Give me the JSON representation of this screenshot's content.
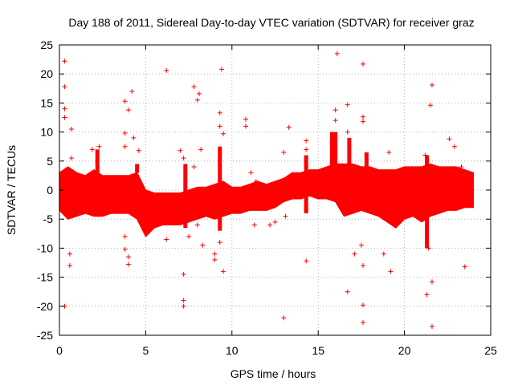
{
  "chart_data": {
    "type": "scatter",
    "title": "Day 188 of 2011, Sidereal Day-to-day VTEC variation (SDTVAR) for receiver graz",
    "xlabel": "GPS time / hours",
    "ylabel": "SDTVAR / TECUs",
    "xlim": [
      0,
      25
    ],
    "ylim": [
      -25,
      25
    ],
    "xticks": [
      0,
      5,
      10,
      15,
      20,
      25
    ],
    "yticks": [
      -25,
      -20,
      -15,
      -10,
      -5,
      0,
      5,
      10,
      15,
      20,
      25
    ],
    "xtick_labels": [
      "0",
      "5",
      "10",
      "15",
      "20",
      "25"
    ],
    "ytick_labels": [
      "-25",
      "-20",
      "-15",
      "-10",
      "-5",
      "0",
      "5",
      "10",
      "15",
      "20",
      "25"
    ],
    "grid": true,
    "marker": "+",
    "color": "#ff0000",
    "band_envelope": {
      "description": "dense scatter band: per-hour approximate upper / lower extent of the bulk of points",
      "x": [
        0.0,
        0.5,
        1.0,
        1.5,
        2.0,
        2.5,
        3.0,
        3.5,
        4.0,
        4.5,
        5.0,
        5.5,
        6.0,
        6.5,
        7.0,
        7.5,
        8.0,
        8.5,
        9.0,
        9.5,
        10.0,
        10.5,
        11.0,
        11.5,
        12.0,
        12.5,
        13.0,
        13.5,
        14.0,
        14.5,
        15.0,
        15.5,
        16.0,
        16.5,
        17.0,
        17.5,
        18.0,
        18.5,
        19.0,
        19.5,
        20.0,
        20.5,
        21.0,
        21.5,
        22.0,
        22.5,
        23.0,
        23.5,
        24.0
      ],
      "upper": [
        3.0,
        4.0,
        3.0,
        2.5,
        3.5,
        2.5,
        2.5,
        2.5,
        2.5,
        3.0,
        0.0,
        -0.5,
        -0.5,
        -0.5,
        -0.5,
        0.0,
        0.5,
        0.5,
        1.0,
        1.5,
        0.5,
        0.5,
        1.0,
        1.5,
        1.0,
        1.5,
        2.0,
        3.0,
        3.0,
        3.5,
        3.5,
        4.0,
        4.5,
        4.5,
        4.5,
        4.0,
        4.0,
        3.5,
        3.5,
        3.5,
        4.0,
        4.0,
        4.0,
        4.5,
        4.0,
        4.0,
        4.0,
        3.5,
        3.0
      ],
      "lower": [
        -3.5,
        -5.0,
        -4.5,
        -4.0,
        -4.5,
        -4.5,
        -4.0,
        -4.0,
        -4.0,
        -5.0,
        -8.0,
        -6.5,
        -6.0,
        -6.0,
        -6.0,
        -5.5,
        -5.0,
        -4.5,
        -5.0,
        -4.5,
        -4.0,
        -4.0,
        -3.5,
        -3.5,
        -3.5,
        -3.0,
        -2.0,
        -1.5,
        -1.5,
        -1.0,
        -1.5,
        -1.5,
        -2.0,
        -4.5,
        -4.0,
        -3.5,
        -4.0,
        -4.5,
        -5.5,
        -6.5,
        -5.0,
        -4.5,
        -5.5,
        -4.5,
        -4.0,
        -3.5,
        -3.5,
        -3.0,
        -3.0
      ]
    },
    "band_spikes": [
      {
        "x": 15.8,
        "y_top": 10.0,
        "y_bottom": 3.0
      },
      {
        "x": 16.0,
        "y_top": 10.0,
        "y_bottom": 3.0
      },
      {
        "x": 16.8,
        "y_top": 9.0,
        "y_bottom": 4.0
      },
      {
        "x": 17.8,
        "y_top": 6.5,
        "y_bottom": 4.0
      },
      {
        "x": 2.2,
        "y_top": 7.0,
        "y_bottom": 3.0
      },
      {
        "x": 4.5,
        "y_top": 4.5,
        "y_bottom": 3.0
      },
      {
        "x": 7.3,
        "y_top": 4.5,
        "y_bottom": -6.5
      },
      {
        "x": 9.3,
        "y_top": 7.5,
        "y_bottom": -7.0
      },
      {
        "x": 14.3,
        "y_top": 6.0,
        "y_bottom": -4.0
      },
      {
        "x": 21.3,
        "y_top": 6.0,
        "y_bottom": -10.0
      }
    ],
    "outliers": [
      {
        "x": 0.3,
        "y": 22.2
      },
      {
        "x": 0.3,
        "y": 17.8
      },
      {
        "x": 0.3,
        "y": 14.0
      },
      {
        "x": 0.3,
        "y": 12.5
      },
      {
        "x": 0.7,
        "y": 10.5
      },
      {
        "x": 0.3,
        "y": -20.0
      },
      {
        "x": 0.6,
        "y": -13.0
      },
      {
        "x": 0.6,
        "y": -11.0
      },
      {
        "x": 0.7,
        "y": 5.5
      },
      {
        "x": 2.3,
        "y": 7.5
      },
      {
        "x": 1.9,
        "y": 7.0
      },
      {
        "x": 3.8,
        "y": 15.3
      },
      {
        "x": 4.2,
        "y": 17.0
      },
      {
        "x": 4.0,
        "y": 13.8
      },
      {
        "x": 3.8,
        "y": 9.8
      },
      {
        "x": 4.3,
        "y": 9.0
      },
      {
        "x": 3.8,
        "y": 7.5
      },
      {
        "x": 4.6,
        "y": 6.8
      },
      {
        "x": 3.8,
        "y": -8.0
      },
      {
        "x": 3.8,
        "y": -10.2
      },
      {
        "x": 4.0,
        "y": -11.5
      },
      {
        "x": 4.0,
        "y": -12.8
      },
      {
        "x": 6.2,
        "y": 20.6
      },
      {
        "x": 7.0,
        "y": 6.8
      },
      {
        "x": 7.2,
        "y": 5.5
      },
      {
        "x": 6.2,
        "y": -8.5
      },
      {
        "x": 7.2,
        "y": -14.5
      },
      {
        "x": 7.2,
        "y": -19.0
      },
      {
        "x": 7.2,
        "y": -20.0
      },
      {
        "x": 7.5,
        "y": -8.0
      },
      {
        "x": 7.8,
        "y": 17.8
      },
      {
        "x": 8.0,
        "y": 15.5
      },
      {
        "x": 8.1,
        "y": 16.6
      },
      {
        "x": 7.8,
        "y": 4.0
      },
      {
        "x": 8.2,
        "y": 7.0
      },
      {
        "x": 8.0,
        "y": -6.0
      },
      {
        "x": 8.3,
        "y": -9.5
      },
      {
        "x": 9.0,
        "y": -11.0
      },
      {
        "x": 9.4,
        "y": 20.8
      },
      {
        "x": 9.3,
        "y": 13.3
      },
      {
        "x": 9.3,
        "y": 11.0
      },
      {
        "x": 9.5,
        "y": 9.7
      },
      {
        "x": 9.5,
        "y": -14.0
      },
      {
        "x": 9.0,
        "y": -12.0
      },
      {
        "x": 9.3,
        "y": -9.0
      },
      {
        "x": 10.8,
        "y": 12.2
      },
      {
        "x": 10.8,
        "y": 11.0
      },
      {
        "x": 11.1,
        "y": 3.0
      },
      {
        "x": 11.4,
        "y": 1.5
      },
      {
        "x": 11.3,
        "y": -6.0
      },
      {
        "x": 12.2,
        "y": -6.0
      },
      {
        "x": 12.5,
        "y": -5.5
      },
      {
        "x": 13.0,
        "y": 6.5
      },
      {
        "x": 13.3,
        "y": 10.8
      },
      {
        "x": 13.0,
        "y": -22.0
      },
      {
        "x": 13.1,
        "y": -4.5
      },
      {
        "x": 14.3,
        "y": 8.5
      },
      {
        "x": 14.3,
        "y": 7.0
      },
      {
        "x": 14.3,
        "y": -12.2
      },
      {
        "x": 16.1,
        "y": 23.5
      },
      {
        "x": 16.7,
        "y": 14.7
      },
      {
        "x": 16.0,
        "y": 13.8
      },
      {
        "x": 16.0,
        "y": 12.0
      },
      {
        "x": 16.7,
        "y": 10.0
      },
      {
        "x": 16.7,
        "y": -17.5
      },
      {
        "x": 17.1,
        "y": -11.0
      },
      {
        "x": 17.6,
        "y": 21.7
      },
      {
        "x": 17.6,
        "y": 12.6
      },
      {
        "x": 17.6,
        "y": 11.8
      },
      {
        "x": 17.6,
        "y": -19.8
      },
      {
        "x": 17.6,
        "y": -22.8
      },
      {
        "x": 17.6,
        "y": -13.0
      },
      {
        "x": 17.5,
        "y": -9.5
      },
      {
        "x": 19.1,
        "y": 6.5
      },
      {
        "x": 18.8,
        "y": -11.0
      },
      {
        "x": 19.2,
        "y": -14.0
      },
      {
        "x": 21.6,
        "y": 18.1
      },
      {
        "x": 21.5,
        "y": 14.6
      },
      {
        "x": 21.2,
        "y": 6.0
      },
      {
        "x": 21.3,
        "y": -18.0
      },
      {
        "x": 21.6,
        "y": -15.8
      },
      {
        "x": 21.6,
        "y": -23.5
      },
      {
        "x": 21.4,
        "y": -10.0
      },
      {
        "x": 22.6,
        "y": 8.8
      },
      {
        "x": 22.9,
        "y": 7.5
      },
      {
        "x": 23.5,
        "y": -13.2
      },
      {
        "x": 23.3,
        "y": 4.0
      }
    ]
  }
}
